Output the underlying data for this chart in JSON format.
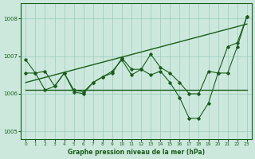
{
  "title": "Graphe pression niveau de la mer (hPa)",
  "background_color": "#cce8dd",
  "grid_color": "#99ccbb",
  "line_color": "#1a5c1a",
  "text_color": "#1a5c1a",
  "xlim": [
    -0.5,
    23.5
  ],
  "ylim": [
    1004.8,
    1008.4
  ],
  "yticks": [
    1005,
    1006,
    1007,
    1008
  ],
  "xticks": [
    0,
    1,
    2,
    3,
    4,
    5,
    6,
    7,
    8,
    9,
    10,
    11,
    12,
    13,
    14,
    15,
    16,
    17,
    18,
    19,
    20,
    21,
    22,
    23
  ],
  "series1_x": [
    0,
    1,
    2,
    3,
    4,
    5,
    6,
    7,
    8,
    9,
    10,
    11,
    12,
    13,
    14,
    15,
    16,
    17,
    18,
    19,
    20,
    21,
    22,
    23
  ],
  "series1_y": [
    1006.9,
    1006.55,
    1006.6,
    1006.2,
    1006.55,
    1006.05,
    1006.0,
    1006.3,
    1006.45,
    1006.55,
    1006.95,
    1006.65,
    1006.65,
    1007.05,
    1006.7,
    1006.55,
    1006.3,
    1006.0,
    1006.0,
    1006.6,
    1006.55,
    1007.25,
    1007.35,
    1008.05
  ],
  "series2_x": [
    0,
    1,
    2,
    3,
    4,
    5,
    6,
    7,
    8,
    9,
    10,
    11,
    12,
    13,
    14,
    15,
    16,
    17,
    18,
    19,
    20,
    21,
    22,
    23
  ],
  "series2_y": [
    1006.55,
    1006.55,
    1006.1,
    1006.2,
    1006.55,
    1006.1,
    1006.05,
    1006.3,
    1006.45,
    1006.6,
    1006.9,
    1006.5,
    1006.65,
    1006.5,
    1006.6,
    1006.3,
    1005.9,
    1005.35,
    1005.35,
    1005.75,
    1006.55,
    1006.55,
    1007.25,
    1008.05
  ],
  "series3_x": [
    0,
    23
  ],
  "series3_y": [
    1006.1,
    1006.1
  ],
  "series4_x": [
    0,
    23
  ],
  "series4_y": [
    1006.3,
    1007.85
  ]
}
